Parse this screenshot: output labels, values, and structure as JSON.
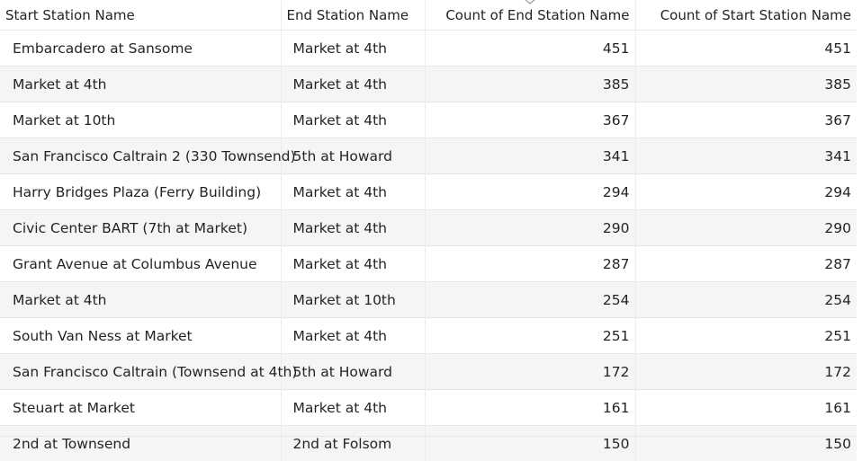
{
  "columns": {
    "start_station": "Start Station Name",
    "end_station": "End Station Name",
    "count_end": "Count of End Station Name",
    "count_start": "Count of Start Station Name"
  },
  "sort": {
    "column": "Count of End Station Name",
    "direction": "descending",
    "icon": "chevron-down-icon"
  },
  "rows": [
    {
      "start": "Embarcadero at Sansome",
      "end": "Market at 4th",
      "count_end": "451",
      "count_start": "451"
    },
    {
      "start": "Market at 4th",
      "end": "Market at 4th",
      "count_end": "385",
      "count_start": "385"
    },
    {
      "start": "Market at 10th",
      "end": "Market at 4th",
      "count_end": "367",
      "count_start": "367"
    },
    {
      "start": "San Francisco Caltrain 2 (330 Townsend)",
      "end": "5th at Howard",
      "count_end": "341",
      "count_start": "341"
    },
    {
      "start": "Harry Bridges Plaza (Ferry Building)",
      "end": "Market at 4th",
      "count_end": "294",
      "count_start": "294"
    },
    {
      "start": "Civic Center BART (7th at Market)",
      "end": "Market at 4th",
      "count_end": "290",
      "count_start": "290"
    },
    {
      "start": "Grant Avenue at Columbus Avenue",
      "end": "Market at 4th",
      "count_end": "287",
      "count_start": "287"
    },
    {
      "start": "Market at 4th",
      "end": "Market at 10th",
      "count_end": "254",
      "count_start": "254"
    },
    {
      "start": "South Van Ness at Market",
      "end": "Market at 4th",
      "count_end": "251",
      "count_start": "251"
    },
    {
      "start": "San Francisco Caltrain (Townsend at 4th)",
      "end": "5th at Howard",
      "count_end": "172",
      "count_start": "172"
    },
    {
      "start": "Steuart at Market",
      "end": "Market at 4th",
      "count_end": "161",
      "count_start": "161"
    },
    {
      "start": "2nd at Townsend",
      "end": "2nd at Folsom",
      "count_end": "150",
      "count_start": "150"
    }
  ],
  "colors": {
    "text": "#252423",
    "row_alt": "#f5f5f5",
    "row": "#ffffff",
    "gridline": "#e6e6e6"
  }
}
